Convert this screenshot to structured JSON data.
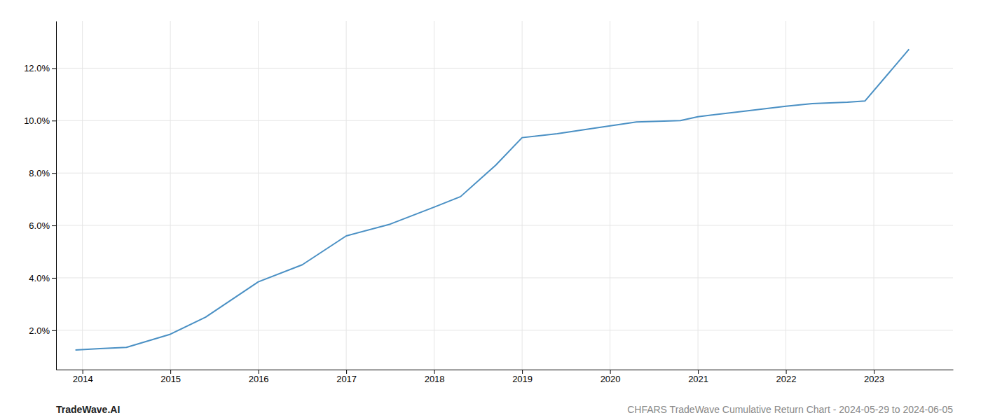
{
  "chart_data": {
    "type": "line",
    "x": [
      2013.92,
      2014.2,
      2014.5,
      2015.0,
      2015.4,
      2016.0,
      2016.5,
      2017.0,
      2017.5,
      2018.0,
      2018.3,
      2018.7,
      2019.0,
      2019.4,
      2019.8,
      2020.3,
      2020.8,
      2021.0,
      2021.5,
      2022.0,
      2022.3,
      2022.7,
      2022.9,
      2023.4
    ],
    "values": [
      1.25,
      1.3,
      1.35,
      1.85,
      2.5,
      3.85,
      4.5,
      5.6,
      6.05,
      6.7,
      7.1,
      8.3,
      9.35,
      9.5,
      9.7,
      9.95,
      10.0,
      10.15,
      10.35,
      10.55,
      10.65,
      10.7,
      10.75,
      12.72
    ],
    "color": "#4a90c4",
    "xlim": [
      2013.7,
      2023.9
    ],
    "xticks": [
      2014,
      2015,
      2016,
      2017,
      2018,
      2019,
      2020,
      2021,
      2022,
      2023
    ],
    "ylim": [
      0.5,
      13.8
    ],
    "yticks": [
      {
        "value": 2.0,
        "label": "2.0%"
      },
      {
        "value": 4.0,
        "label": "4.0%"
      },
      {
        "value": 6.0,
        "label": "6.0%"
      },
      {
        "value": 8.0,
        "label": "8.0%"
      },
      {
        "value": 10.0,
        "label": "10.0%"
      },
      {
        "value": 12.0,
        "label": "12.0%"
      }
    ],
    "grid": true,
    "annotations": [
      "TradeWave.AI",
      "CHFARS TradeWave Cumulative Return Chart - 2024-05-29 to 2024-06-05"
    ]
  }
}
